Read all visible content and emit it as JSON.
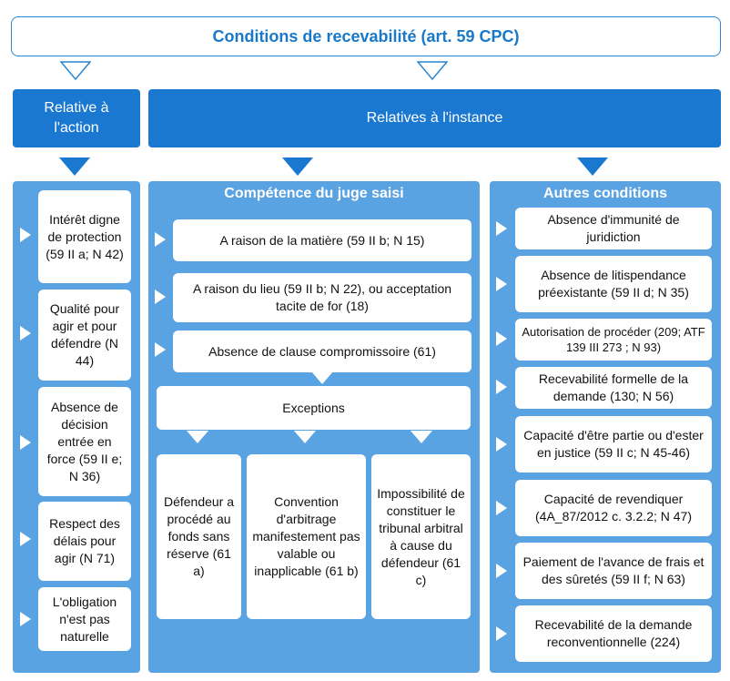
{
  "title": "Conditions de recevabilité (art. 59 CPC)",
  "headers": {
    "left": "Relative à l'action",
    "right": "Relatives à l'instance"
  },
  "left_items": [
    "Intérêt digne de protection (59 II a; N 42)",
    "Qualité pour agir et pour défendre (N 44)",
    "Absence de décision entrée en force (59 II e; N 36)",
    "Respect des délais pour agir (N 71)",
    "L'obligation n'est pas naturelle"
  ],
  "competence": {
    "title": "Compétence du juge saisi",
    "items": [
      "A raison de la matière (59 II b; N 15)",
      "A raison du lieu (59 II b; N 22), ou acceptation tacite de for (18)",
      "Absence de clause compromissoire (61)"
    ],
    "exceptions_label": "Exceptions",
    "exceptions": [
      "Défendeur a procédé au fonds sans réserve (61 a)",
      "Convention d'arbitrage manifestement pas valable ou inapplicable (61 b)",
      "Impossibilité de constituer le tribunal arbitral à cause du défendeur (61 c)"
    ]
  },
  "autres": {
    "title": "Autres conditions",
    "items": [
      "Absence d'immunité de juridiction",
      "Absence de litispendance préexistante (59 II d; N 35)",
      "Autorisation de procéder (209; ATF 139 III 273 ; N 93)",
      "Recevabilité formelle de la demande (130; N 56)",
      "Capacité d'être partie ou d'ester en justice (59 II c; N 45-46)",
      "Capacité de revendiquer (4A_87/2012 c. 3.2.2; N 47)",
      "Paiement de l'avance de frais et des sûretés (59 II f; N 63)",
      "Recevabilité de la demande reconventionnelle (224)"
    ]
  },
  "colors": {
    "dark_blue": "#1a78d0",
    "light_blue": "#5aa3e2",
    "title_text": "#1a78c8"
  }
}
